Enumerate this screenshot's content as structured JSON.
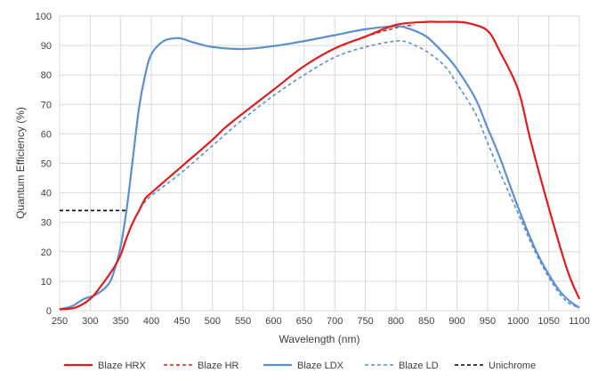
{
  "chart_data": {
    "type": "line",
    "xlabel": "Wavelength (nm)",
    "ylabel": "Quantum Efficiency (%)",
    "xlim": [
      250,
      1100
    ],
    "ylim": [
      0,
      100
    ],
    "x_ticks": [
      "250",
      "300",
      "350",
      "400",
      "450",
      "500",
      "550",
      "600",
      "650",
      "700",
      "750",
      "800",
      "850",
      "900",
      "950",
      "1000",
      "1050",
      "1100"
    ],
    "y_ticks": [
      "0",
      "10",
      "20",
      "30",
      "40",
      "50",
      "60",
      "70",
      "80",
      "90",
      "100"
    ],
    "grid": true,
    "legend_position": "bottom",
    "series": [
      {
        "name": "Blaze HRX",
        "color": "#e31b1b",
        "dash": "solid",
        "x": [
          250,
          275,
          300,
          320,
          340,
          350,
          360,
          370,
          380,
          390,
          400,
          450,
          500,
          520,
          550,
          600,
          650,
          700,
          750,
          800,
          850,
          870,
          900,
          920,
          950,
          970,
          1000,
          1020,
          1050,
          1080,
          1100
        ],
        "y": [
          0.5,
          1,
          4,
          9,
          15,
          19,
          25,
          30,
          34,
          38,
          40,
          49,
          58,
          62,
          67,
          75,
          83,
          89,
          93,
          97,
          98,
          98,
          98,
          97.5,
          95,
          88,
          75,
          58,
          35,
          14,
          4
        ]
      },
      {
        "name": "Blaze HR",
        "color": "#e31b1b",
        "dash": "dashed",
        "x": [
          250,
          275,
          300,
          320,
          340,
          350,
          360,
          370,
          380,
          390,
          400,
          450,
          500,
          520,
          550,
          600,
          650,
          700,
          750,
          800,
          830
        ],
        "y": [
          0.5,
          1,
          4,
          9,
          15,
          19,
          25,
          30,
          34,
          38,
          40,
          49,
          58,
          62,
          67,
          75,
          83,
          89,
          93,
          96,
          97
        ]
      },
      {
        "name": "Blaze LDX",
        "color": "#5b8fcf",
        "dash": "solid",
        "x": [
          250,
          270,
          290,
          310,
          330,
          340,
          350,
          360,
          370,
          380,
          390,
          400,
          420,
          440,
          450,
          470,
          500,
          550,
          600,
          650,
          700,
          750,
          800,
          820,
          850,
          880,
          900,
          930,
          950,
          970,
          1000,
          1030,
          1060,
          1080,
          1100
        ],
        "y": [
          0.5,
          1.5,
          4,
          5.5,
          9,
          14,
          22,
          35,
          52,
          69,
          80,
          87,
          91.5,
          92.5,
          92.3,
          91,
          89.5,
          88.8,
          89.8,
          91.5,
          93.5,
          95.5,
          96.5,
          95.8,
          93,
          87,
          82,
          72,
          62,
          52,
          35,
          20,
          9,
          4,
          1
        ]
      },
      {
        "name": "Blaze LD",
        "color": "#5b8fcf",
        "dash": "dashed",
        "x": [
          250,
          275,
          300,
          320,
          340,
          350,
          360,
          370,
          380,
          390,
          400,
          450,
          500,
          550,
          600,
          650,
          700,
          750,
          800,
          820,
          850,
          880,
          900,
          930,
          950,
          970,
          1000,
          1030,
          1060,
          1080,
          1100
        ],
        "y": [
          0.5,
          1,
          4,
          9,
          15,
          19,
          25,
          30,
          34,
          37,
          39,
          47,
          56,
          65,
          73,
          80,
          86,
          89.5,
          91.5,
          91,
          88,
          83,
          77,
          67,
          57,
          47,
          33,
          19,
          8,
          3,
          1
        ]
      },
      {
        "name": "Unichrome",
        "color": "#000000",
        "dash": "dashed",
        "x": [
          250,
          360
        ],
        "y": [
          34,
          34
        ]
      }
    ]
  }
}
